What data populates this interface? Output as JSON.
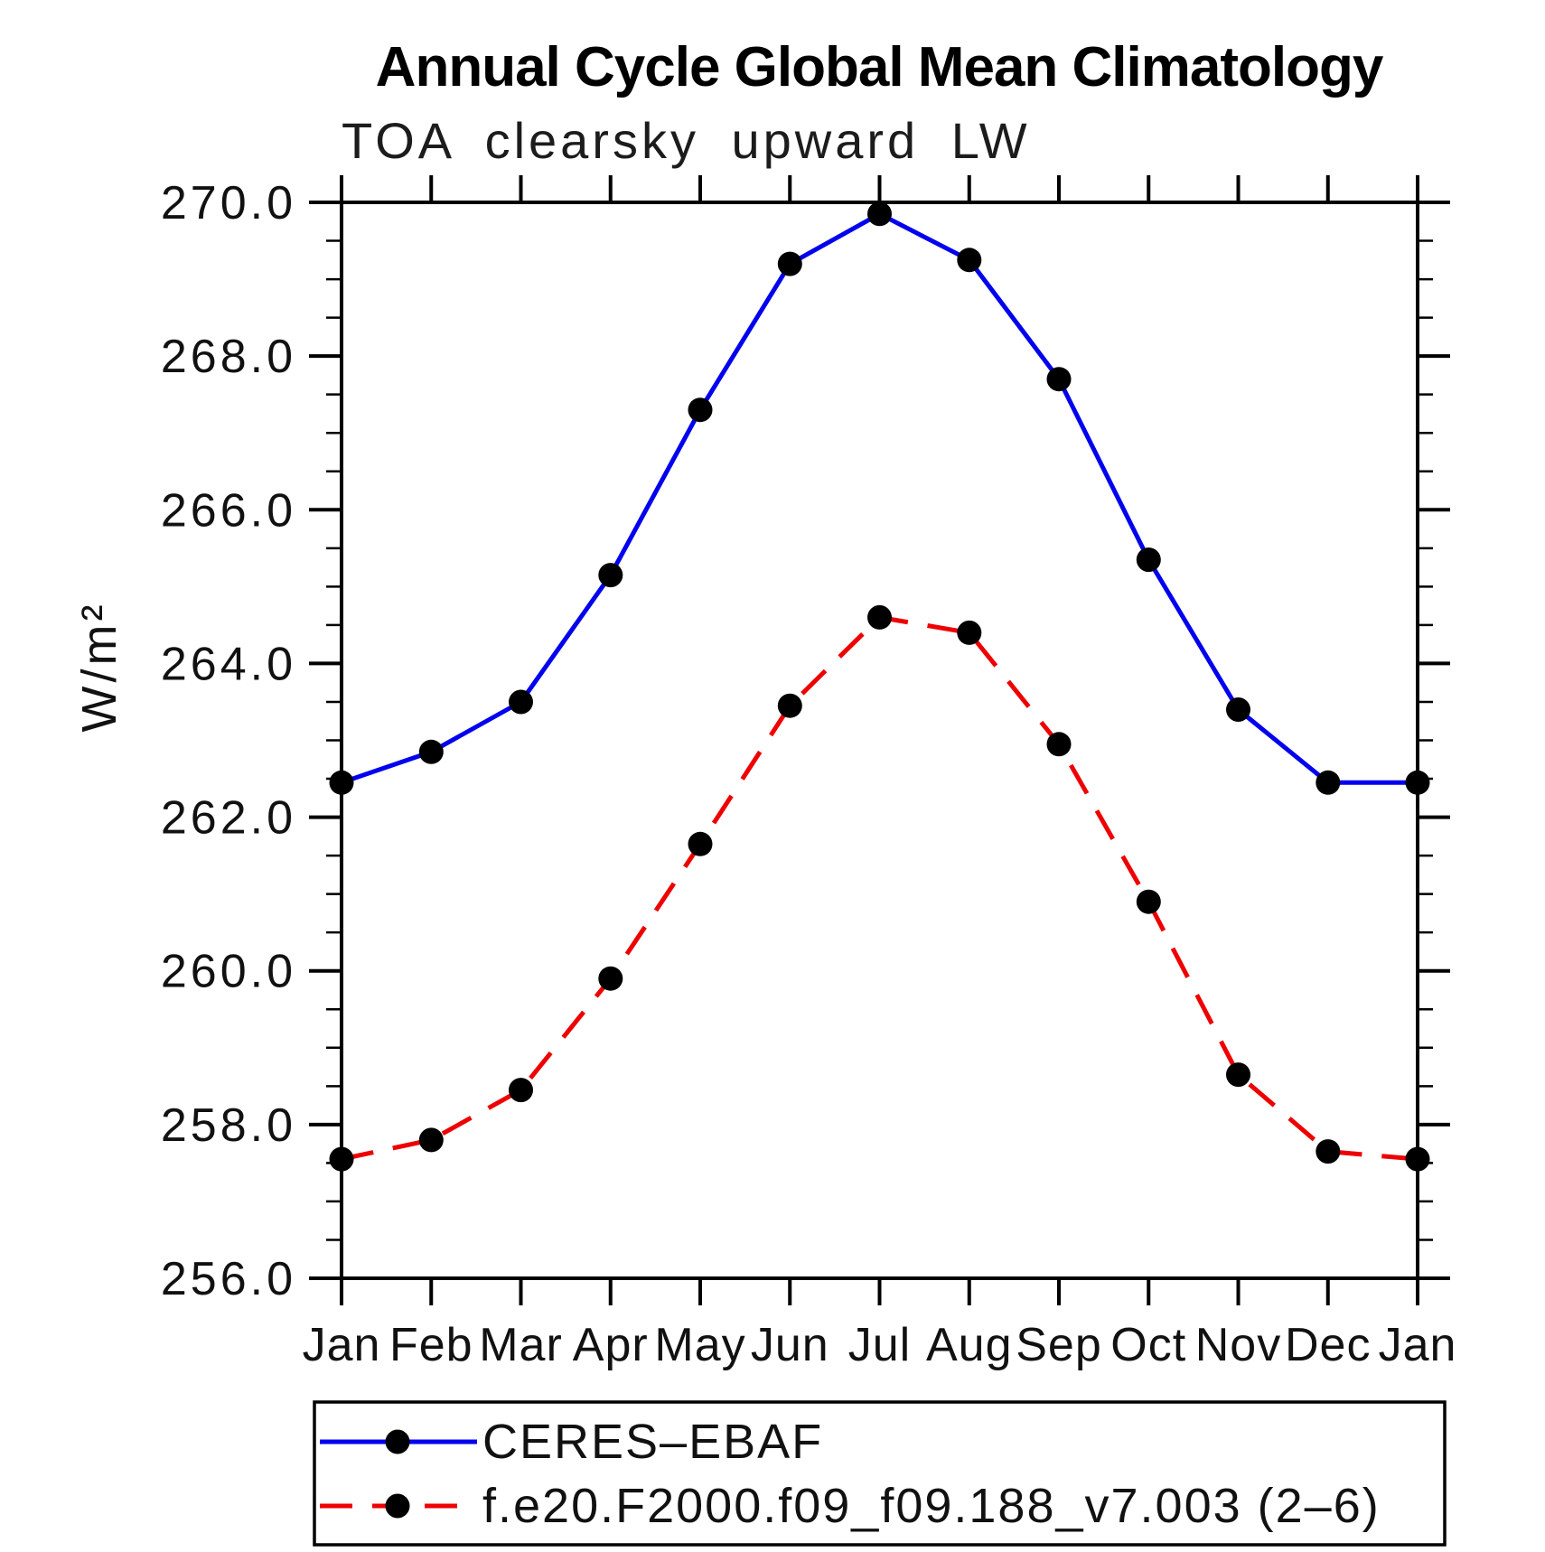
{
  "chart_data": {
    "type": "line",
    "title": "Annual Cycle Global Mean Climatology",
    "subtitle": "TOA clearsky upward LW",
    "xlabel": "",
    "ylabel": "W/m²",
    "categories": [
      "Jan",
      "Feb",
      "Mar",
      "Apr",
      "May",
      "Jun",
      "Jul",
      "Aug",
      "Sep",
      "Oct",
      "Nov",
      "Dec",
      "Jan"
    ],
    "ylim": [
      256.0,
      270.0
    ],
    "ytick_step": 2.0,
    "ytick_minor_step": 0.5,
    "ytick_labels": [
      "256.0",
      "258.0",
      "260.0",
      "262.0",
      "264.0",
      "266.0",
      "268.0",
      "270.0"
    ],
    "grid": false,
    "legend_position": "bottom-left-box",
    "series": [
      {
        "name": "CERES–EBAF",
        "color": "#0000ee",
        "line_style": "solid",
        "marker": "circle",
        "marker_color": "#000000",
        "values": [
          262.45,
          262.85,
          263.5,
          265.15,
          267.3,
          269.2,
          269.85,
          269.25,
          267.7,
          265.35,
          263.4,
          262.45,
          262.45
        ]
      },
      {
        "name": "f.e20.F2000.f09_f09.188_v7.003 (2–6)",
        "color": "#ee0000",
        "line_style": "dashed",
        "marker": "circle",
        "marker_color": "#000000",
        "values": [
          257.55,
          257.8,
          258.45,
          259.9,
          261.65,
          263.45,
          264.6,
          264.4,
          262.95,
          260.9,
          258.65,
          257.65,
          257.55
        ]
      }
    ]
  }
}
